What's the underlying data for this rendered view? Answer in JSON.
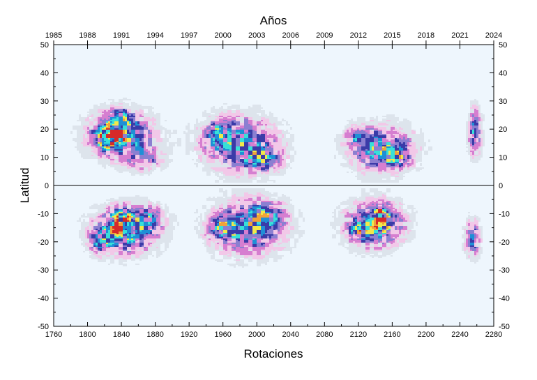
{
  "chart_data": {
    "type": "heatmap",
    "title": "",
    "xlabel": "Rotaciones",
    "x2label": "Años",
    "ylabel": "Latitud",
    "xlim": [
      1760,
      2280
    ],
    "ylim": [
      -50,
      50
    ],
    "x_ticks": [
      "1760",
      "1800",
      "1840",
      "1880",
      "1920",
      "1960",
      "2000",
      "2040",
      "2080",
      "2120",
      "2160",
      "2200",
      "2240",
      "2280"
    ],
    "x2_ticks": [
      "1985",
      "1988",
      "1991",
      "1994",
      "1997",
      "2000",
      "2003",
      "2006",
      "2009",
      "2012",
      "2015",
      "2018",
      "2021",
      "2024"
    ],
    "y_ticks": [
      "-50",
      "-40",
      "-30",
      "-20",
      "-10",
      "0",
      "10",
      "20",
      "30",
      "40",
      "50"
    ],
    "colors": {
      "background": "#eef6fd",
      "levels": [
        "#dde4ec",
        "#f2c8e8",
        "#d67ed0",
        "#8b7fd1",
        "#3a3ba8",
        "#1f8fd6",
        "#38e0d8",
        "#f2e84a",
        "#f1a23a",
        "#d62a2a"
      ]
    },
    "blobs": [
      {
        "x": 1840,
        "y": 18,
        "sx": 28,
        "sy": 6,
        "amp": 6
      },
      {
        "x": 1824,
        "y": 17,
        "sx": 10,
        "sy": 3,
        "amp": 4
      },
      {
        "x": 1868,
        "y": 9,
        "sx": 15,
        "sy": 3,
        "amp": 3
      },
      {
        "x": 1838,
        "y": 24,
        "sx": 9,
        "sy": 3,
        "amp": 2.5
      },
      {
        "x": 1980,
        "y": 15,
        "sx": 32,
        "sy": 7,
        "amp": 5.5
      },
      {
        "x": 1952,
        "y": 19,
        "sx": 10,
        "sy": 3,
        "amp": 3
      },
      {
        "x": 2010,
        "y": 9,
        "sx": 15,
        "sy": 3,
        "amp": 3
      },
      {
        "x": 2148,
        "y": 13,
        "sx": 28,
        "sy": 6,
        "amp": 5.5
      },
      {
        "x": 2118,
        "y": 18,
        "sx": 9,
        "sy": 2.5,
        "amp": 3
      },
      {
        "x": 2165,
        "y": 10,
        "sx": 10,
        "sy": 3,
        "amp": 2.5
      },
      {
        "x": 2258,
        "y": 19,
        "sx": 6,
        "sy": 6,
        "amp": 5
      },
      {
        "x": 1845,
        "y": -16,
        "sx": 28,
        "sy": 6,
        "amp": 6
      },
      {
        "x": 1840,
        "y": -13,
        "sx": 8,
        "sy": 3,
        "amp": 4.5
      },
      {
        "x": 1815,
        "y": -20,
        "sx": 9,
        "sy": 3,
        "amp": 3
      },
      {
        "x": 1875,
        "y": -11,
        "sx": 12,
        "sy": 3,
        "amp": 2.5
      },
      {
        "x": 1990,
        "y": -15,
        "sx": 32,
        "sy": 7,
        "amp": 5.5
      },
      {
        "x": 1958,
        "y": -15,
        "sx": 10,
        "sy": 3,
        "amp": 3.5
      },
      {
        "x": 2015,
        "y": -10,
        "sx": 15,
        "sy": 3,
        "amp": 2.5
      },
      {
        "x": 2140,
        "y": -14,
        "sx": 26,
        "sy": 6,
        "amp": 5.5
      },
      {
        "x": 2148,
        "y": -11,
        "sx": 8,
        "sy": 3,
        "amp": 4
      },
      {
        "x": 2120,
        "y": -16,
        "sx": 8,
        "sy": 2.5,
        "amp": 2.5
      },
      {
        "x": 2255,
        "y": -19,
        "sx": 7,
        "sy": 5,
        "amp": 4.5
      }
    ]
  }
}
